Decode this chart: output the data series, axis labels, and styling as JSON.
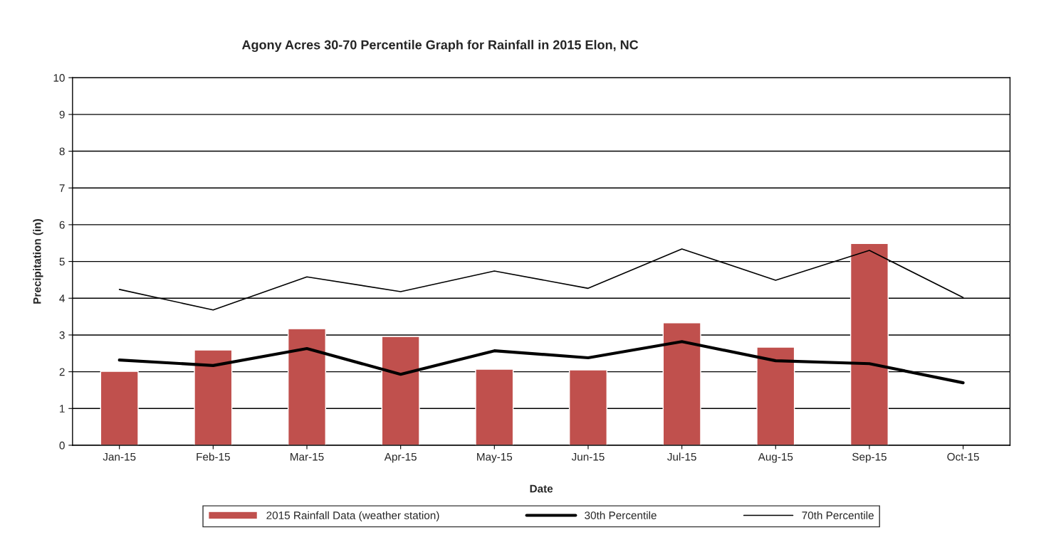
{
  "chart_data": {
    "type": "bar",
    "title": "Agony Acres 30-70 Percentile Graph for Rainfall in 2015 Elon, NC",
    "xlabel": "Date",
    "ylabel": "Precipitation (in)",
    "categories": [
      "Jan-15",
      "Feb-15",
      "Mar-15",
      "Apr-15",
      "May-15",
      "Jun-15",
      "Jul-15",
      "Aug-15",
      "Sep-15",
      "Oct-15"
    ],
    "series": [
      {
        "name": "2015 Rainfall Data (weather station)",
        "color": "#c0504d",
        "values": [
          2.01,
          2.59,
          3.17,
          2.96,
          2.07,
          2.05,
          3.33,
          2.67,
          5.49,
          null
        ]
      },
      {
        "name": "30th Percentile",
        "type": "line",
        "color": "#000000",
        "values": [
          2.32,
          2.17,
          2.63,
          1.93,
          2.57,
          2.38,
          2.82,
          2.3,
          2.22,
          1.7
        ]
      },
      {
        "name": "70th Percentile",
        "type": "line",
        "color": "#000000",
        "values": [
          4.24,
          3.68,
          4.58,
          4.18,
          4.74,
          4.27,
          5.34,
          4.49,
          5.3,
          4.02
        ]
      }
    ],
    "ylim": [
      0,
      10
    ],
    "yticks": [
      0,
      1,
      2,
      3,
      4,
      5,
      6,
      7,
      8,
      9,
      10
    ],
    "grid": "y",
    "legend": "bottom",
    "marker": "none",
    "line_style": "solid"
  }
}
